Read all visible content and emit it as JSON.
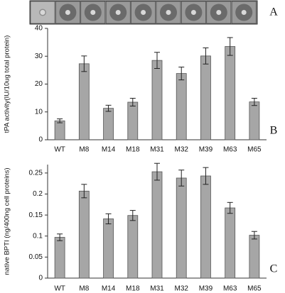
{
  "image_panel": {
    "label": "A"
  },
  "chart_data": [
    {
      "type": "bar",
      "panel_label": "B",
      "y_label": "tPA activity(IU/10ug total protein)",
      "categories": [
        "WT",
        "M8",
        "M14",
        "M18",
        "M31",
        "M32",
        "M39",
        "M63",
        "M65"
      ],
      "values": [
        6.8,
        27.3,
        11.3,
        13.5,
        28.5,
        23.8,
        30.1,
        33.5,
        13.6
      ],
      "errors": [
        0.7,
        2.8,
        1.1,
        1.4,
        2.9,
        2.3,
        2.9,
        3.2,
        1.3
      ],
      "color": "#a6a6a6",
      "ylim": [
        0,
        40
      ],
      "yticks": [
        0,
        10,
        20,
        30,
        40
      ]
    },
    {
      "type": "bar",
      "panel_label": "C",
      "y_label": "native BPTI (ng/400ng cell proteins)",
      "categories": [
        "WT",
        "M8",
        "M14",
        "M18",
        "M31",
        "M32",
        "M39",
        "M63",
        "M65"
      ],
      "values": [
        0.097,
        0.207,
        0.141,
        0.149,
        0.253,
        0.238,
        0.243,
        0.167,
        0.102
      ],
      "errors": [
        0.008,
        0.016,
        0.012,
        0.012,
        0.02,
        0.019,
        0.02,
        0.013,
        0.009
      ],
      "color": "#a6a6a6",
      "ylim": [
        0,
        0.27
      ],
      "yticks": [
        0,
        0.05,
        0.1,
        0.15,
        0.2,
        0.25
      ]
    }
  ]
}
